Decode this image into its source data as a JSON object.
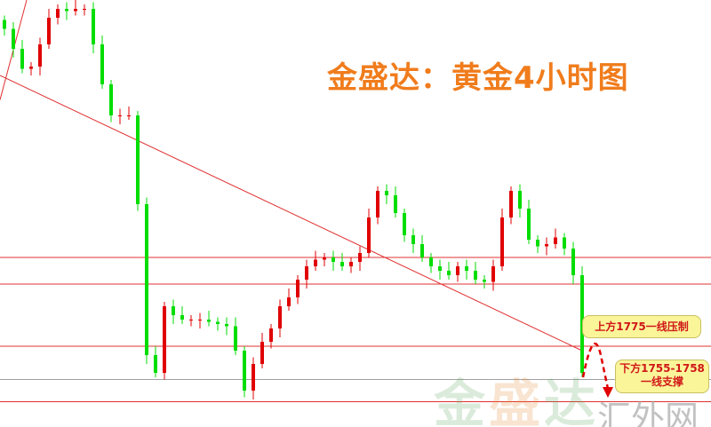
{
  "chart_data": {
    "type": "candlestick",
    "title": "金盛达：黄金4小时图",
    "closes": [
      1918,
      1909,
      1900,
      1901,
      1911,
      1923,
      1927,
      1926,
      1927,
      1927,
      1911,
      1893,
      1879,
      1879,
      1879,
      1839,
      1771,
      1763,
      1793,
      1789,
      1787,
      1787,
      1787,
      1786,
      1785,
      1784,
      1773,
      1755,
      1767,
      1777,
      1783,
      1793,
      1797,
      1805,
      1811,
      1814,
      1815,
      1813,
      1811,
      1813,
      1817,
      1833,
      1845,
      1843,
      1835,
      1825,
      1821,
      1815,
      1811,
      1809,
      1807,
      1811,
      1809,
      1805,
      1804,
      1811,
      1833,
      1845,
      1837,
      1823,
      1820,
      1821,
      1824,
      1819,
      1807,
      1763
    ],
    "horizontal_levels": [
      {
        "price": 1815,
        "color": "#e03030"
      },
      {
        "price": 1803,
        "color": "#e03030"
      },
      {
        "price": 1775,
        "color": "#e03030"
      },
      {
        "price": 1760,
        "color": "#a0a0a0"
      },
      {
        "price": 1750,
        "color": "#e03030"
      }
    ],
    "trendline": {
      "from": {
        "index": -0.5,
        "price": 1897
      },
      "to": {
        "index": 65,
        "price": 1773
      },
      "color": "#e03030"
    },
    "colors": {
      "up": "#e00000",
      "down": "#00dd00"
    },
    "annotations": {
      "resistance": "上方1775一线压制",
      "support_line1": "下方1755-1758",
      "support_line2": "一线支撑"
    }
  },
  "watermark": {
    "brand_1": "金",
    "brand_2": "盛",
    "brand_3": "达",
    "site": "汇外网"
  }
}
